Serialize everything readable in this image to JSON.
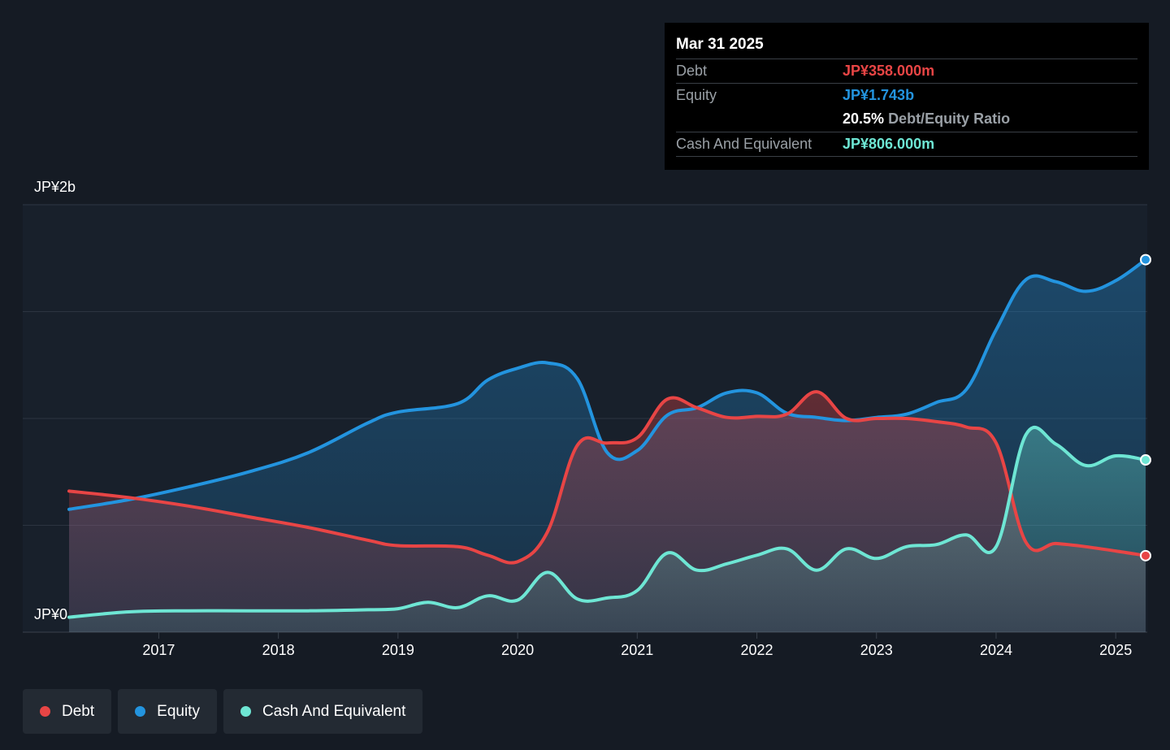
{
  "colors": {
    "debt": "#e84545",
    "equity": "#2394df",
    "cash": "#6ee6d4"
  },
  "tooltip": {
    "date": "Mar 31 2025",
    "debt_label": "Debt",
    "debt_value": "JP¥358.000m",
    "equity_label": "Equity",
    "equity_value": "JP¥1.743b",
    "ratio_value": "20.5%",
    "ratio_label": "Debt/Equity Ratio",
    "cash_label": "Cash And Equivalent",
    "cash_value": "JP¥806.000m"
  },
  "legend": {
    "debt": "Debt",
    "equity": "Equity",
    "cash": "Cash And Equivalent"
  },
  "chart_data": {
    "type": "area",
    "y_axis_labels": {
      "top": "JP¥2b",
      "bottom": "JP¥0"
    },
    "ylim": [
      0,
      2000
    ],
    "xlim": [
      2016.25,
      2025.25
    ],
    "x_ticks": [
      "2017",
      "2018",
      "2019",
      "2020",
      "2021",
      "2022",
      "2023",
      "2024",
      "2025"
    ],
    "x_tick_values": [
      2017,
      2018,
      2019,
      2020,
      2021,
      2022,
      2023,
      2024,
      2025
    ],
    "grid_values": [
      0,
      500,
      1000,
      1500,
      2000
    ],
    "units": "JP¥ millions",
    "series": [
      {
        "name": "Debt",
        "color_key": "debt",
        "x": [
          2016.25,
          2016.75,
          2017.25,
          2017.75,
          2018.25,
          2018.75,
          2019.0,
          2019.5,
          2019.75,
          2020.0,
          2020.25,
          2020.5,
          2020.75,
          2021.0,
          2021.25,
          2021.5,
          2021.75,
          2022.0,
          2022.25,
          2022.5,
          2022.75,
          2023.0,
          2023.25,
          2023.5,
          2023.75,
          2024.0,
          2024.25,
          2024.5,
          2024.75,
          2025.0,
          2025.25
        ],
        "values": [
          660,
          630,
          590,
          540,
          490,
          430,
          405,
          400,
          360,
          330,
          470,
          875,
          885,
          910,
          1090,
          1050,
          1005,
          1010,
          1020,
          1125,
          1000,
          1000,
          1000,
          985,
          960,
          885,
          420,
          415,
          400,
          380,
          358
        ]
      },
      {
        "name": "Equity",
        "color_key": "equity",
        "x": [
          2016.25,
          2016.75,
          2017.25,
          2017.75,
          2018.25,
          2018.75,
          2019.0,
          2019.5,
          2019.75,
          2020.0,
          2020.25,
          2020.5,
          2020.75,
          2021.0,
          2021.25,
          2021.5,
          2021.75,
          2022.0,
          2022.25,
          2022.5,
          2022.75,
          2023.0,
          2023.25,
          2023.5,
          2023.75,
          2024.0,
          2024.25,
          2024.5,
          2024.75,
          2025.0,
          2025.25
        ],
        "values": [
          575,
          620,
          680,
          750,
          840,
          980,
          1030,
          1070,
          1180,
          1235,
          1260,
          1185,
          840,
          850,
          1015,
          1050,
          1120,
          1120,
          1025,
          1005,
          990,
          1005,
          1020,
          1075,
          1135,
          1415,
          1650,
          1640,
          1595,
          1645,
          1743
        ]
      },
      {
        "name": "Cash And Equivalent",
        "color_key": "cash",
        "x": [
          2016.25,
          2016.75,
          2017.25,
          2017.75,
          2018.25,
          2018.75,
          2019.0,
          2019.25,
          2019.5,
          2019.75,
          2020.0,
          2020.25,
          2020.5,
          2020.75,
          2021.0,
          2021.25,
          2021.5,
          2021.75,
          2022.0,
          2022.25,
          2022.5,
          2022.75,
          2023.0,
          2023.25,
          2023.5,
          2023.75,
          2024.0,
          2024.25,
          2024.5,
          2024.75,
          2025.0,
          2025.25
        ],
        "values": [
          70,
          95,
          100,
          100,
          100,
          105,
          110,
          140,
          115,
          170,
          150,
          280,
          155,
          160,
          195,
          370,
          290,
          320,
          360,
          390,
          290,
          390,
          345,
          400,
          410,
          455,
          400,
          925,
          880,
          780,
          825,
          806
        ]
      }
    ]
  }
}
